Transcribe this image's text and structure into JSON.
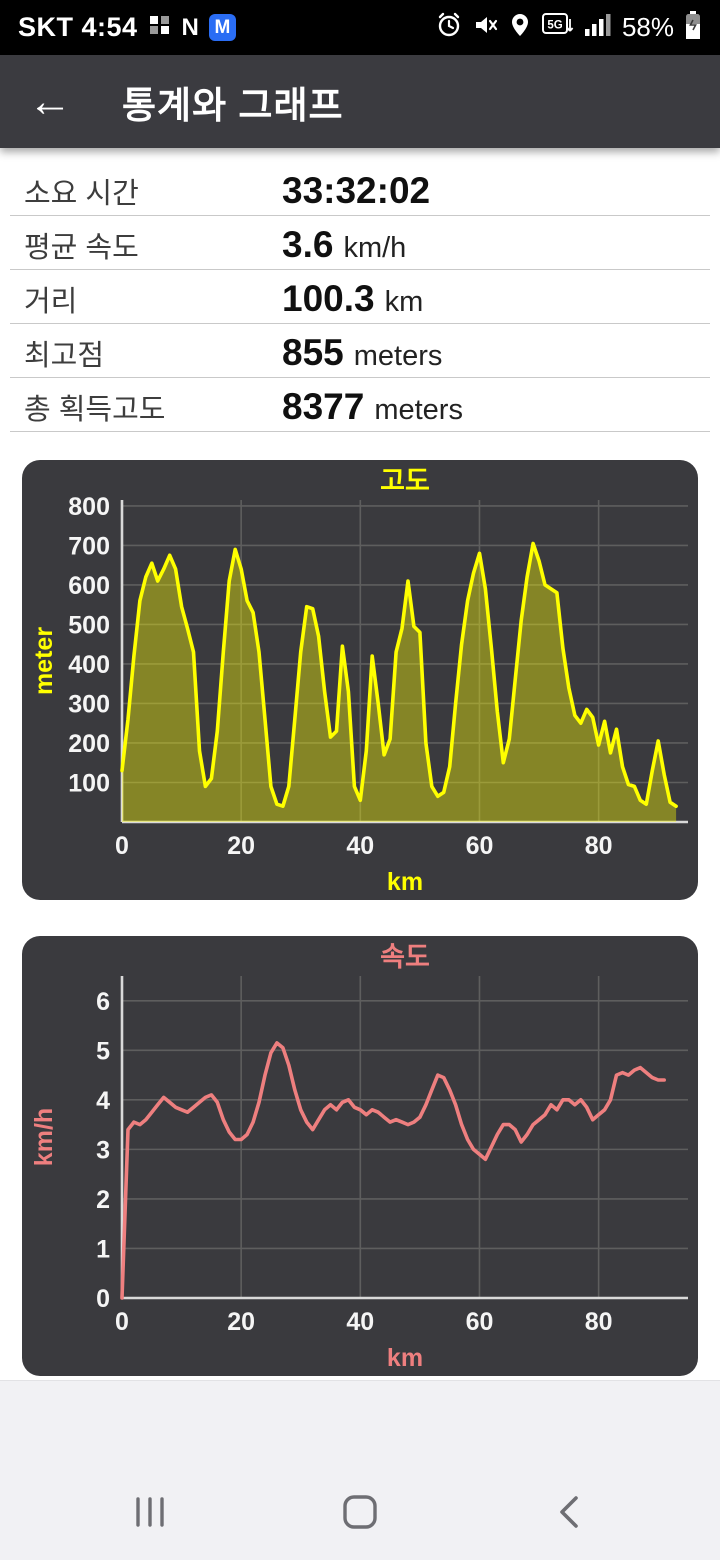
{
  "status_bar": {
    "carrier_time": "SKT 4:54",
    "badge_n": "N",
    "badge_m": "M",
    "badge_5g": "5G",
    "battery_percent": "58%"
  },
  "header": {
    "back": "←",
    "title": "통계와 그래프"
  },
  "stats": {
    "rows": [
      {
        "label": "소요 시간",
        "value": "33:32:02",
        "unit": ""
      },
      {
        "label": "평균 속도",
        "value": "3.6",
        "unit": "km/h"
      },
      {
        "label": "거리",
        "value": "100.3",
        "unit": "km"
      },
      {
        "label": "최고점",
        "value": "855",
        "unit": "meters"
      },
      {
        "label": "총 획득고도",
        "value": "8377",
        "unit": "meters"
      }
    ]
  },
  "chart_data": [
    {
      "type": "area",
      "title": "고도",
      "xlabel": "km",
      "ylabel": "meter",
      "color": "#ffff00",
      "fill": "rgba(255,255,0,0.38)",
      "xlim": [
        0,
        95
      ],
      "ylim": [
        0,
        815
      ],
      "xticks": [
        0,
        20,
        40,
        60,
        80
      ],
      "yticks": [
        100,
        200,
        300,
        400,
        500,
        600,
        700,
        800
      ],
      "grid": true,
      "x": [
        0,
        1,
        2,
        3,
        4,
        5,
        6,
        7,
        8,
        9,
        10,
        11,
        12,
        13,
        14,
        15,
        16,
        17,
        18,
        19,
        20,
        21,
        22,
        23,
        24,
        25,
        26,
        27,
        28,
        29,
        30,
        31,
        32,
        33,
        34,
        35,
        36,
        37,
        38,
        39,
        40,
        41,
        42,
        43,
        44,
        45,
        46,
        47,
        48,
        49,
        50,
        51,
        52,
        53,
        54,
        55,
        56,
        57,
        58,
        59,
        60,
        61,
        62,
        63,
        64,
        65,
        66,
        67,
        68,
        69,
        70,
        71,
        72,
        73,
        74,
        75,
        76,
        77,
        78,
        79,
        80,
        81,
        82,
        83,
        84,
        85,
        86,
        87,
        88,
        89,
        90,
        91,
        92,
        93
      ],
      "y": [
        130,
        260,
        420,
        560,
        620,
        655,
        610,
        640,
        675,
        640,
        545,
        490,
        430,
        180,
        90,
        110,
        230,
        430,
        610,
        690,
        640,
        560,
        530,
        430,
        260,
        90,
        45,
        40,
        90,
        260,
        430,
        545,
        540,
        470,
        330,
        215,
        230,
        445,
        330,
        90,
        55,
        180,
        420,
        300,
        170,
        210,
        430,
        490,
        610,
        495,
        480,
        200,
        90,
        65,
        75,
        140,
        300,
        450,
        560,
        630,
        680,
        590,
        440,
        280,
        150,
        210,
        360,
        510,
        620,
        705,
        660,
        600,
        590,
        580,
        440,
        340,
        270,
        250,
        285,
        265,
        195,
        255,
        175,
        235,
        140,
        95,
        90,
        55,
        45,
        130,
        205,
        120,
        50,
        40
      ]
    },
    {
      "type": "line",
      "title": "속도",
      "xlabel": "km",
      "ylabel": "km/h",
      "color": "#ee7f7f",
      "fill": "none",
      "xlim": [
        0,
        95
      ],
      "ylim": [
        0,
        6.5
      ],
      "xticks": [
        0,
        20,
        40,
        60,
        80
      ],
      "yticks": [
        0,
        1,
        2,
        3,
        4,
        5,
        6
      ],
      "grid": true,
      "x": [
        0,
        1,
        2,
        3,
        4,
        5,
        6,
        7,
        8,
        9,
        10,
        11,
        12,
        13,
        14,
        15,
        16,
        17,
        18,
        19,
        20,
        21,
        22,
        23,
        24,
        25,
        26,
        27,
        28,
        29,
        30,
        31,
        32,
        33,
        34,
        35,
        36,
        37,
        38,
        39,
        40,
        41,
        42,
        43,
        44,
        45,
        46,
        47,
        48,
        49,
        50,
        51,
        52,
        53,
        54,
        55,
        56,
        57,
        58,
        59,
        60,
        61,
        62,
        63,
        64,
        65,
        66,
        67,
        68,
        69,
        70,
        71,
        72,
        73,
        74,
        75,
        76,
        77,
        78,
        79,
        80,
        81,
        82,
        83,
        84,
        85,
        86,
        87,
        88,
        89,
        90,
        91
      ],
      "y": [
        0,
        3.4,
        3.55,
        3.5,
        3.6,
        3.75,
        3.9,
        4.05,
        3.95,
        3.85,
        3.8,
        3.75,
        3.85,
        3.95,
        4.05,
        4.1,
        3.95,
        3.6,
        3.35,
        3.2,
        3.2,
        3.3,
        3.55,
        3.95,
        4.5,
        4.95,
        5.15,
        5.05,
        4.7,
        4.2,
        3.8,
        3.55,
        3.4,
        3.6,
        3.8,
        3.9,
        3.8,
        3.95,
        4.0,
        3.85,
        3.8,
        3.7,
        3.8,
        3.75,
        3.65,
        3.55,
        3.6,
        3.55,
        3.5,
        3.55,
        3.65,
        3.9,
        4.2,
        4.5,
        4.45,
        4.2,
        3.9,
        3.5,
        3.2,
        3.0,
        2.9,
        2.8,
        3.05,
        3.3,
        3.5,
        3.5,
        3.4,
        3.15,
        3.3,
        3.5,
        3.6,
        3.7,
        3.9,
        3.8,
        4.0,
        4.0,
        3.9,
        4.0,
        3.85,
        3.6,
        3.7,
        3.8,
        4.0,
        4.5,
        4.55,
        4.5,
        4.6,
        4.65,
        4.55,
        4.45,
        4.4,
        4.4
      ]
    }
  ]
}
